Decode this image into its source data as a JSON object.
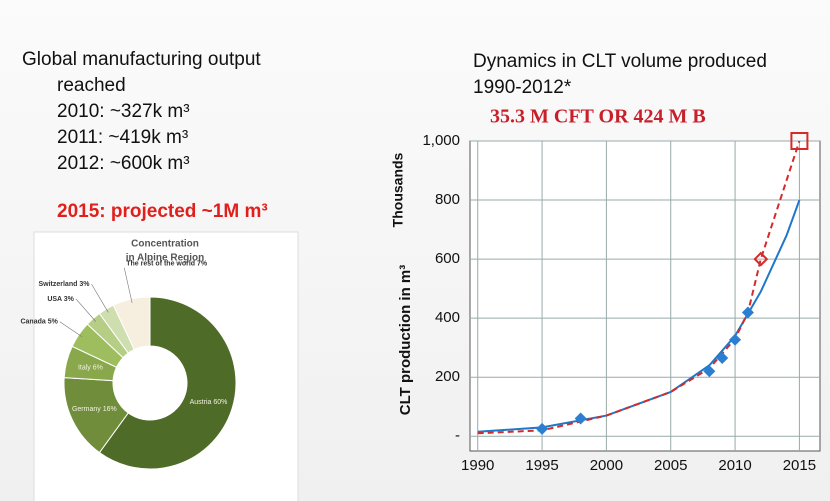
{
  "text": {
    "heading": "Global manufacturing output",
    "heading_cont": "reached",
    "items": [
      "2010: ~327k m³",
      "2011: ~419k m³",
      "2012: ~600k m³"
    ],
    "projection": "2015: projected ~1M m³"
  },
  "chart_data": [
    {
      "type": "donut",
      "title": [
        "Concentration",
        "in Alpine Region"
      ],
      "categories": [
        "Austria 60%",
        "Germany 16%",
        "Italy 6%",
        "Canada 5%",
        "USA 3%",
        "Switzerland 3%",
        "The rest of the world 7%"
      ],
      "values": [
        60,
        16,
        6,
        5,
        3,
        3,
        7
      ],
      "colors": [
        "#4e6b28",
        "#6f8d3a",
        "#88a84b",
        "#9dbd5e",
        "#b6cd86",
        "#cfdeae",
        "#f6efdf"
      ]
    },
    {
      "type": "line",
      "title": [
        "Dynamics in CLT volume produced",
        "1990-2012*"
      ],
      "annotation": "35.3 M CFT OR 424 M B",
      "y_label": "CLT production in m³",
      "y_unit_label": "Thousands",
      "xlim": [
        1989.4,
        2016.6
      ],
      "xticks": [
        1990,
        1995,
        2000,
        2005,
        2010,
        2015
      ],
      "ylim": [
        -50,
        1000
      ],
      "yticks": [
        {
          "value": 0,
          "label": "-"
        },
        200,
        400,
        600,
        800,
        {
          "value": 1000,
          "label": "1,000"
        }
      ],
      "grid": true,
      "series": [
        {
          "style": "solid",
          "color": "#1f77c8",
          "x": [
            1990,
            1995,
            2000,
            2005,
            2008,
            2010,
            2012,
            2014,
            2015
          ],
          "values": [
            15,
            30,
            70,
            150,
            240,
            340,
            490,
            680,
            800
          ]
        },
        {
          "style": "dashed",
          "color": "#d42a2a",
          "x": [
            1990,
            1995,
            2000,
            2005,
            2008,
            2010,
            2011,
            2012,
            2015
          ],
          "values": [
            10,
            20,
            70,
            150,
            230,
            330,
            419,
            600,
            1000
          ],
          "markers": [
            null,
            null,
            null,
            null,
            null,
            null,
            null,
            "diamond-open",
            "square-open"
          ]
        },
        {
          "style": "points",
          "color": "#2b7fd0",
          "x": [
            1995,
            1998,
            2008,
            2009,
            2010,
            2011
          ],
          "values": [
            25,
            60,
            220,
            265,
            327,
            419
          ]
        }
      ]
    }
  ]
}
